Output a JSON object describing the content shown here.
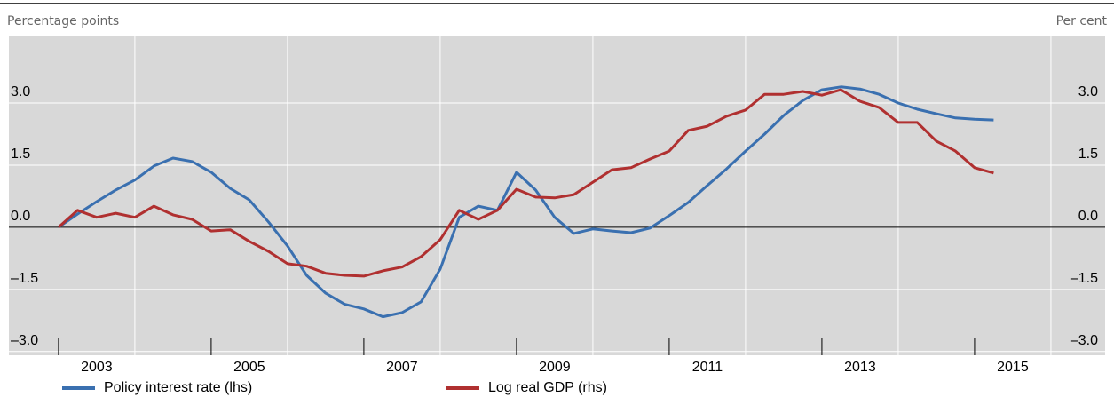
{
  "chart_data": {
    "type": "line",
    "left_axis_label": "Percentage points",
    "right_axis_label": "Per cent",
    "x": [
      2003,
      2003.25,
      2003.5,
      2003.75,
      2004,
      2004.25,
      2004.5,
      2004.75,
      2005,
      2005.25,
      2005.5,
      2005.75,
      2006,
      2006.25,
      2006.5,
      2006.75,
      2007,
      2007.25,
      2007.5,
      2007.75,
      2008,
      2008.25,
      2008.5,
      2008.75,
      2009,
      2009.25,
      2009.5,
      2009.75,
      2010,
      2010.25,
      2010.5,
      2010.75,
      2011,
      2011.25,
      2011.5,
      2011.75,
      2012,
      2012.25,
      2012.5,
      2012.75,
      2013,
      2013.25,
      2013.5,
      2013.75,
      2014,
      2014.25,
      2014.5,
      2014.75,
      2015,
      2015.25
    ],
    "series": [
      {
        "name": "Policy interest rate (lhs)",
        "color": "#3a70b0",
        "values": [
          0,
          0.32,
          0.62,
          0.9,
          1.14,
          1.48,
          1.67,
          1.59,
          1.33,
          0.94,
          0.66,
          0.13,
          -0.45,
          -1.16,
          -1.59,
          -1.86,
          -1.97,
          -2.16,
          -2.06,
          -1.8,
          -1.01,
          0.24,
          0.51,
          0.41,
          1.33,
          0.9,
          0.24,
          -0.15,
          -0.04,
          -0.09,
          -0.13,
          -0.02,
          0.28,
          0.6,
          1.01,
          1.41,
          1.84,
          2.25,
          2.7,
          3.06,
          3.32,
          3.39,
          3.34,
          3.21,
          3.0,
          2.85,
          2.74,
          2.64,
          2.61,
          2.59
        ]
      },
      {
        "name": "Log real GDP (rhs)",
        "color": "#b03030",
        "axis": "y2",
        "values": [
          0,
          0.41,
          0.24,
          0.34,
          0.24,
          0.51,
          0.3,
          0.19,
          -0.09,
          -0.06,
          -0.34,
          -0.58,
          -0.88,
          -0.94,
          -1.11,
          -1.16,
          -1.18,
          -1.05,
          -0.96,
          -0.71,
          -0.3,
          0.41,
          0.19,
          0.41,
          0.92,
          0.73,
          0.71,
          0.79,
          1.09,
          1.39,
          1.44,
          1.65,
          1.84,
          2.34,
          2.44,
          2.68,
          2.83,
          3.21,
          3.21,
          3.28,
          3.19,
          3.32,
          3.04,
          2.89,
          2.53,
          2.53,
          2.08,
          1.84,
          1.44,
          1.31
        ]
      }
    ],
    "xlim": [
      2002.35,
      2016.71
    ],
    "xticks": [
      {
        "value": 2003,
        "label": "2003"
      },
      {
        "value": 2005,
        "label": "2005"
      },
      {
        "value": 2007,
        "label": "2007"
      },
      {
        "value": 2009,
        "label": "2009"
      },
      {
        "value": 2011,
        "label": "2011"
      },
      {
        "value": 2013,
        "label": "2013"
      },
      {
        "value": 2015,
        "label": "2015"
      }
    ],
    "xgrid": [
      2004,
      2006,
      2008,
      2010,
      2012,
      2014,
      2016
    ],
    "ylim": [
      -3.09,
      4.63
    ],
    "yticks": [
      {
        "value": -3,
        "label": "–3.0"
      },
      {
        "value": -1.5,
        "label": "–1.5"
      },
      {
        "value": 0,
        "label": "0.0"
      },
      {
        "value": 1.5,
        "label": "1.5"
      },
      {
        "value": 3,
        "label": "3.0"
      }
    ],
    "y2lim": [
      -3.09,
      4.63
    ],
    "y2ticks": [
      {
        "value": -3,
        "label": "–3.0"
      },
      {
        "value": -1.5,
        "label": "–1.5"
      },
      {
        "value": 0,
        "label": "0.0"
      },
      {
        "value": 1.5,
        "label": "1.5"
      },
      {
        "value": 3,
        "label": "3.0"
      }
    ],
    "grid": true,
    "legend": "bottom"
  }
}
